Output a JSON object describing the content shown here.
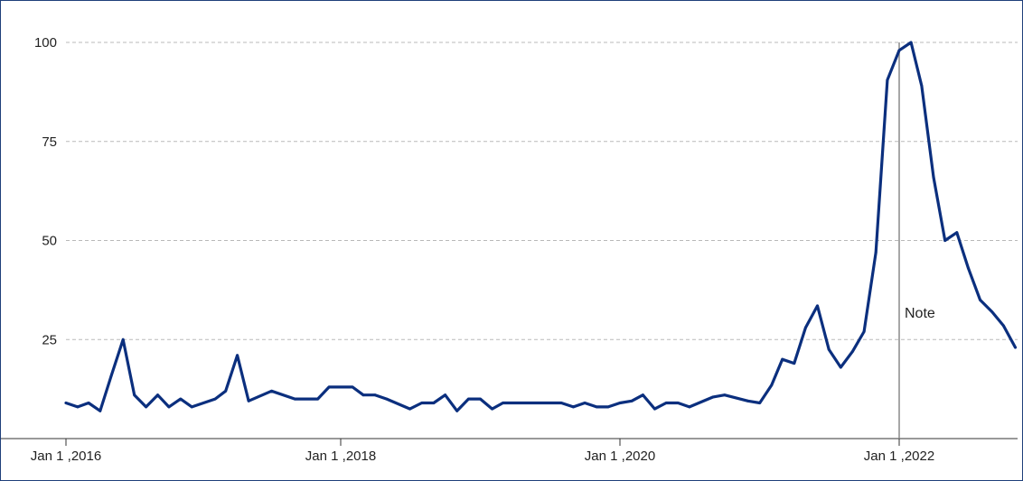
{
  "chart_data": {
    "type": "line",
    "title": "",
    "xlabel": "",
    "ylabel": "",
    "xlim": [
      "2016-01-01",
      "2022-10-01"
    ],
    "ylim": [
      0,
      100
    ],
    "grid": true,
    "grid_axis": "y",
    "y_ticks": [
      {
        "value": 25,
        "label": "25"
      },
      {
        "value": 50,
        "label": "50"
      },
      {
        "value": 75,
        "label": "75"
      },
      {
        "value": 100,
        "label": "100"
      }
    ],
    "x_ticks": [
      {
        "value": "2016-01-01",
        "label": "Jan 1 ,2016"
      },
      {
        "value": "2018-01-01",
        "label": "Jan 1 ,2018"
      },
      {
        "value": "2020-01-01",
        "label": "Jan 1 ,2020"
      },
      {
        "value": "2022-01-01",
        "label": "Jan 1 ,2022"
      }
    ],
    "series": [
      {
        "color": "#0b2f7e",
        "points": [
          [
            "2016-01-01",
            9
          ],
          [
            "2016-02-01",
            8
          ],
          [
            "2016-03-01",
            9
          ],
          [
            "2016-04-01",
            7
          ],
          [
            "2016-05-01",
            16
          ],
          [
            "2016-06-01",
            25
          ],
          [
            "2016-07-01",
            11
          ],
          [
            "2016-08-01",
            8
          ],
          [
            "2016-09-01",
            11
          ],
          [
            "2016-10-01",
            8
          ],
          [
            "2016-11-01",
            10
          ],
          [
            "2016-12-01",
            8
          ],
          [
            "2017-02-01",
            10
          ],
          [
            "2017-03-01",
            12
          ],
          [
            "2017-04-01",
            21
          ],
          [
            "2017-05-01",
            9.5
          ],
          [
            "2017-07-01",
            12
          ],
          [
            "2017-09-01",
            10
          ],
          [
            "2017-11-01",
            10
          ],
          [
            "2017-12-01",
            13
          ],
          [
            "2018-02-01",
            13
          ],
          [
            "2018-03-01",
            11
          ],
          [
            "2018-04-01",
            11
          ],
          [
            "2018-05-01",
            10
          ],
          [
            "2018-07-01",
            7.5
          ],
          [
            "2018-08-01",
            9
          ],
          [
            "2018-09-01",
            9
          ],
          [
            "2018-10-01",
            11
          ],
          [
            "2018-11-01",
            7
          ],
          [
            "2018-12-01",
            10
          ],
          [
            "2019-01-01",
            10
          ],
          [
            "2019-02-01",
            7.5
          ],
          [
            "2019-03-01",
            9
          ],
          [
            "2019-08-01",
            9
          ],
          [
            "2019-09-01",
            8
          ],
          [
            "2019-10-01",
            9
          ],
          [
            "2019-11-01",
            8
          ],
          [
            "2019-12-01",
            8
          ],
          [
            "2020-01-01",
            9
          ],
          [
            "2020-02-01",
            9.5
          ],
          [
            "2020-03-01",
            11
          ],
          [
            "2020-04-01",
            7.5
          ],
          [
            "2020-05-01",
            9
          ],
          [
            "2020-06-01",
            9
          ],
          [
            "2020-07-01",
            8
          ],
          [
            "2020-09-01",
            10.5
          ],
          [
            "2020-10-01",
            11
          ],
          [
            "2020-12-01",
            9.5
          ],
          [
            "2021-01-01",
            9
          ],
          [
            "2021-02-01",
            13.5
          ],
          [
            "2021-03-01",
            20
          ],
          [
            "2021-04-01",
            19
          ],
          [
            "2021-05-01",
            28
          ],
          [
            "2021-06-01",
            33.5
          ],
          [
            "2021-07-01",
            22.5
          ],
          [
            "2021-08-01",
            18
          ],
          [
            "2021-09-01",
            22
          ],
          [
            "2021-10-01",
            27
          ],
          [
            "2021-11-01",
            47
          ],
          [
            "2021-12-01",
            90.5
          ],
          [
            "2022-01-01",
            98
          ],
          [
            "2022-02-01",
            100
          ],
          [
            "2022-03-01",
            89
          ],
          [
            "2022-04-01",
            66
          ],
          [
            "2022-05-01",
            50
          ],
          [
            "2022-06-01",
            52
          ],
          [
            "2022-07-01",
            43
          ],
          [
            "2022-08-01",
            35
          ],
          [
            "2022-09-01",
            32
          ],
          [
            "2022-10-01",
            28.5
          ],
          [
            "2022-11-01",
            23
          ]
        ]
      }
    ],
    "annotations": [
      {
        "type": "vline",
        "x": "2022-01-01",
        "label": "Note"
      }
    ]
  }
}
